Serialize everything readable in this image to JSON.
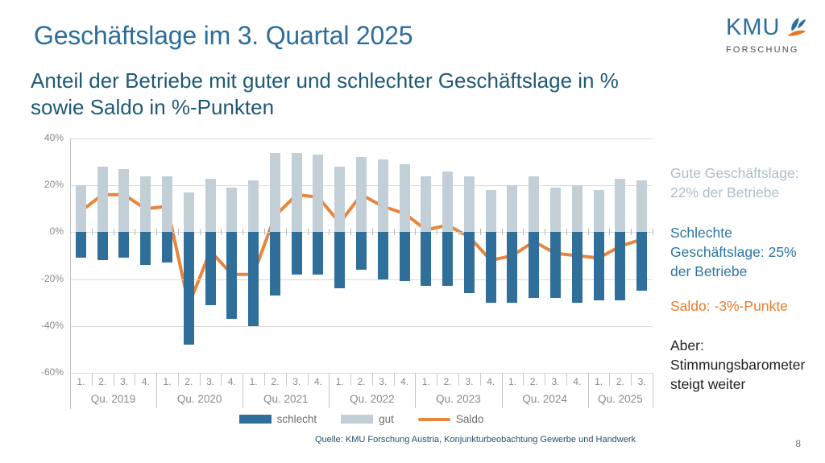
{
  "header": {
    "title": "Geschäftslage im 3. Quartal 2025",
    "subtitle": "Anteil der Betriebe mit guter und schlechter Geschäftslage in %\nsowie Saldo in %-Punkten",
    "title_color": "#2b6e9c",
    "subtitle_color": "#1f5975"
  },
  "logo": {
    "text": "KMU",
    "subtext": "FORSCHUNG",
    "text_color": "#2b6e9c",
    "subtext_color": "#4d4d4d",
    "accent_color": "#e87722"
  },
  "chart_data": {
    "type": "bar+line",
    "title": "",
    "xlabel": "",
    "ylabel": "",
    "ylim": [
      -60,
      40
    ],
    "grid": true,
    "yticks": [
      {
        "value": 40,
        "label": "40%"
      },
      {
        "value": 20,
        "label": "20%"
      },
      {
        "value": 0,
        "label": "0%"
      },
      {
        "value": -20,
        "label": "-20%"
      },
      {
        "value": -40,
        "label": "-40%"
      },
      {
        "value": -60,
        "label": "-60%"
      }
    ],
    "groups": [
      {
        "year_label": "Qu. 2019",
        "quarters": [
          "1.",
          "2.",
          "3.",
          "4."
        ]
      },
      {
        "year_label": "Qu. 2020",
        "quarters": [
          "1.",
          "2.",
          "3.",
          "4."
        ]
      },
      {
        "year_label": "Qu. 2021",
        "quarters": [
          "1.",
          "2.",
          "3.",
          "4."
        ]
      },
      {
        "year_label": "Qu. 2022",
        "quarters": [
          "1.",
          "2.",
          "3.",
          "4."
        ]
      },
      {
        "year_label": "Qu. 2023",
        "quarters": [
          "1.",
          "2.",
          "3.",
          "4."
        ]
      },
      {
        "year_label": "Qu. 2024",
        "quarters": [
          "1.",
          "2.",
          "3.",
          "4."
        ]
      },
      {
        "year_label": "Qu. 2025",
        "quarters": [
          "1.",
          "2.",
          "3."
        ]
      }
    ],
    "series": [
      {
        "name": "schlecht",
        "type": "bar",
        "color": "#306f9a",
        "values": [
          -11,
          -12,
          -11,
          -14,
          -13,
          -48,
          -31,
          -37,
          -40,
          -27,
          -18,
          -18,
          -24,
          -16,
          -20,
          -21,
          -23,
          -23,
          -26,
          -30,
          -30,
          -28,
          -28,
          -30,
          -29,
          -29,
          -25
        ]
      },
      {
        "name": "gut",
        "type": "bar",
        "color": "#c2cfd7",
        "values": [
          20,
          28,
          27,
          24,
          24,
          17,
          23,
          19,
          22,
          34,
          34,
          33,
          28,
          32,
          31,
          29,
          24,
          26,
          24,
          18,
          20,
          24,
          19,
          20,
          18,
          23,
          22
        ]
      },
      {
        "name": "Saldo",
        "type": "line",
        "color": "#e8843c",
        "values": [
          9,
          16,
          16,
          10,
          11,
          -31,
          -8,
          -18,
          -18,
          7,
          16,
          15,
          4,
          16,
          11,
          8,
          1,
          3,
          -2,
          -12,
          -10,
          -4,
          -9,
          -10,
          -11,
          -6,
          -3
        ]
      }
    ],
    "legend": [
      "schlecht",
      "gut",
      "Saldo"
    ],
    "legend_position": "bottom",
    "grid_color": "#dadada",
    "tick_text_color": "#8a8a8a"
  },
  "annotations": [
    {
      "text": "Gute Geschäftslage:\n22% der Betriebe",
      "color": "#a9bfcc"
    },
    {
      "text": "Schlechte\nGeschäftslage: 25%\nder Betriebe",
      "color": "#2e75a3"
    },
    {
      "text": "Saldo: -3%-Punkte",
      "color": "#e87d2a"
    },
    {
      "text": "Aber:\nStimmungsbarometer\nsteigt weiter",
      "color": "#1f1f1f"
    }
  ],
  "footer": {
    "source": "Quelle: KMU Forschung Austria, Konjunkturbeobachtung Gewerbe und Handwerk",
    "page": "8"
  }
}
